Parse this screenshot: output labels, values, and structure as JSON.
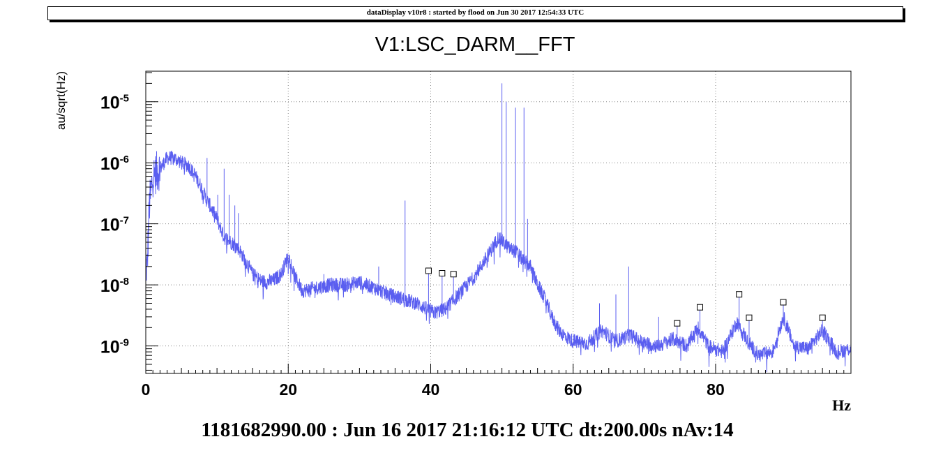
{
  "header": {
    "banner": "dataDisplay v10r8 : started by flood on Jun 30 2017 12:54:33 UTC"
  },
  "footer": {
    "info": "1181682990.00 : Jun 16 2017 21:16:12 UTC dt:200.00s nAv:14"
  },
  "chart_data": {
    "type": "line",
    "title": "V1:LSC_DARM__FFT",
    "xlabel": "Hz",
    "ylabel": "au/sqrt(Hz)",
    "xlim": [
      0,
      99
    ],
    "ylim_log10": [
      -9.45,
      -4.5
    ],
    "yscale": "log",
    "grid": true,
    "line_color": "#5a5ef0",
    "x_ticks": [
      0,
      20,
      40,
      60,
      80
    ],
    "y_ticks": [
      {
        "exp": -5,
        "base": "10",
        "sup": "-5"
      },
      {
        "exp": -6,
        "base": "10",
        "sup": "-6"
      },
      {
        "exp": -7,
        "base": "10",
        "sup": "-7"
      },
      {
        "exp": -8,
        "base": "10",
        "sup": "-8"
      },
      {
        "exp": -9,
        "base": "10",
        "sup": "-9"
      }
    ],
    "series": [
      {
        "x": [
          0.2,
          0.5,
          1,
          2,
          3,
          4,
          5,
          6,
          7,
          7.8,
          8.5,
          9,
          10,
          11,
          12,
          13,
          14,
          15,
          16,
          17,
          18,
          19,
          20,
          21,
          22,
          24,
          26,
          28,
          30,
          32,
          34,
          36,
          38,
          39.5,
          40.5,
          42,
          44,
          46,
          48,
          49.5,
          51,
          52,
          53,
          54,
          55,
          56,
          57,
          58,
          59,
          60,
          62,
          64,
          66,
          68,
          70,
          72,
          74,
          76,
          77.5,
          79,
          81,
          83,
          84.5,
          86,
          88,
          89.5,
          91,
          93,
          95,
          97,
          99
        ],
        "y": [
          2e-08,
          2e-07,
          6e-07,
          8e-07,
          1.2e-06,
          1.2e-06,
          1e-06,
          9e-07,
          6e-07,
          4e-07,
          2.5e-07,
          2e-07,
          1.2e-07,
          6e-08,
          5e-08,
          4e-08,
          2.5e-08,
          1.5e-08,
          1.2e-08,
          1.1e-08,
          1.2e-08,
          1.5e-08,
          3e-08,
          1.3e-08,
          8e-09,
          9e-09,
          1e-08,
          1e-08,
          1.1e-08,
          9e-09,
          7e-09,
          6e-09,
          5e-09,
          4e-09,
          3.5e-09,
          4e-09,
          7e-09,
          1.3e-08,
          3e-08,
          6e-08,
          4e-08,
          3.5e-08,
          2.5e-08,
          2e-08,
          1e-08,
          6e-09,
          3e-09,
          1.8e-09,
          1.4e-09,
          1.2e-09,
          1.1e-09,
          1.8e-09,
          1.2e-09,
          1.5e-09,
          1.1e-09,
          1e-09,
          1.3e-09,
          1e-09,
          2e-09,
          1e-09,
          8e-10,
          2.5e-09,
          1.2e-09,
          7e-10,
          8e-10,
          3e-09,
          1e-09,
          9e-10,
          1.8e-09,
          8e-10,
          9e-10
        ]
      }
    ],
    "lines": [
      {
        "x": 8.6,
        "top": 1.2e-06
      },
      {
        "x": 10.1,
        "top": 3e-07
      },
      {
        "x": 11.0,
        "top": 8e-07
      },
      {
        "x": 11.7,
        "top": 3e-07
      },
      {
        "x": 12.5,
        "top": 2e-07
      },
      {
        "x": 13.0,
        "top": 1.5e-07
      },
      {
        "x": 25.0,
        "top": 1.5e-08
      },
      {
        "x": 32.7,
        "top": 2e-08
      },
      {
        "x": 36.4,
        "top": 2.4e-07
      },
      {
        "x": 39.7,
        "top": 1.7e-08
      },
      {
        "x": 41.6,
        "top": 1.6e-08
      },
      {
        "x": 43.2,
        "top": 1.5e-08
      },
      {
        "x": 50.0,
        "top": 2e-05
      },
      {
        "x": 50.6,
        "top": 1e-05
      },
      {
        "x": 51.9,
        "top": 8e-06
      },
      {
        "x": 53.1,
        "top": 8e-06
      },
      {
        "x": 53.6,
        "top": 1.2e-07
      },
      {
        "x": 63.7,
        "top": 5e-09
      },
      {
        "x": 66.0,
        "top": 7e-09
      },
      {
        "x": 67.8,
        "top": 2e-08
      },
      {
        "x": 72.0,
        "top": 3e-09
      },
      {
        "x": 74.6,
        "top": 2.3e-09
      },
      {
        "x": 77.8,
        "top": 4.3e-09
      },
      {
        "x": 83.3,
        "top": 7e-09
      },
      {
        "x": 84.7,
        "top": 2.9e-09
      },
      {
        "x": 89.5,
        "top": 5.2e-09
      },
      {
        "x": 95.0,
        "top": 2.9e-09
      }
    ],
    "markers": [
      {
        "x": 39.7,
        "y": 1.7e-08
      },
      {
        "x": 41.6,
        "y": 1.55e-08
      },
      {
        "x": 43.2,
        "y": 1.5e-08
      },
      {
        "x": 74.6,
        "y": 2.35e-09
      },
      {
        "x": 77.8,
        "y": 4.3e-09
      },
      {
        "x": 83.3,
        "y": 7e-09
      },
      {
        "x": 84.7,
        "y": 2.9e-09
      },
      {
        "x": 89.5,
        "y": 5.2e-09
      },
      {
        "x": 95.0,
        "y": 2.9e-09
      }
    ]
  }
}
